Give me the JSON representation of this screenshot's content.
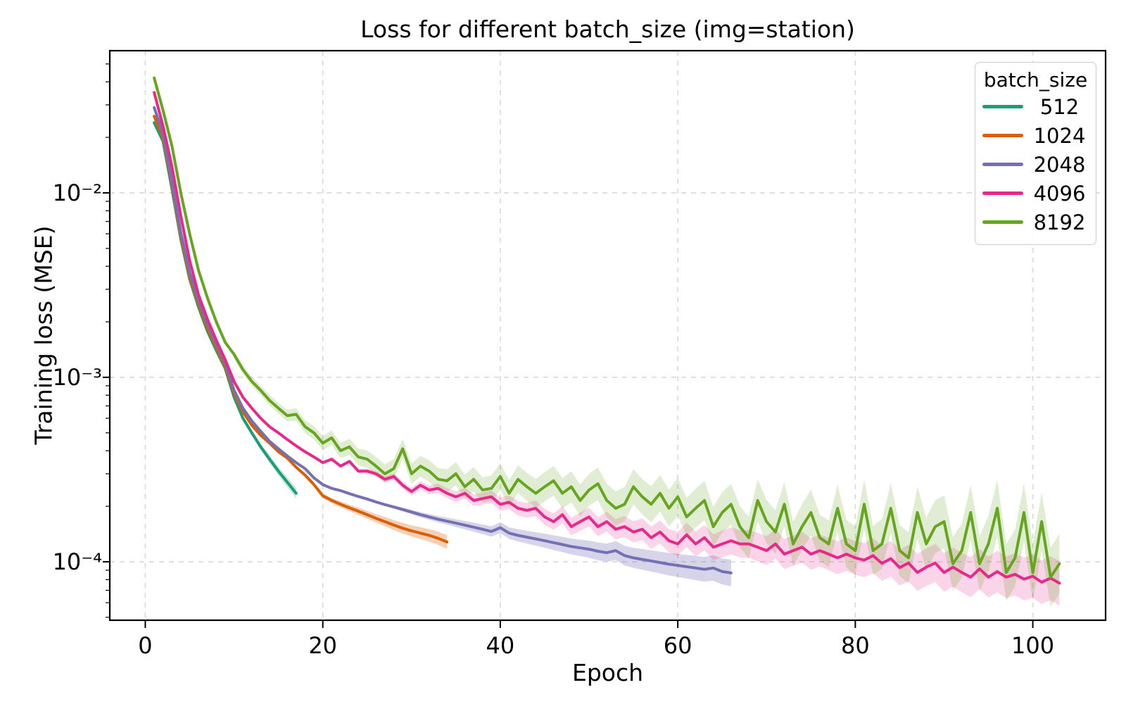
{
  "figure": {
    "title": "Loss for different batch_size (img=station)",
    "xlabel": "Epoch",
    "ylabel": "Training loss (MSE)"
  },
  "legend": {
    "title": "batch_size",
    "entries": [
      {
        "label": "512",
        "color": "#1b9e77"
      },
      {
        "label": "1024",
        "color": "#d95f02"
      },
      {
        "label": "2048",
        "color": "#7570b3"
      },
      {
        "label": "4096",
        "color": "#e7298a"
      },
      {
        "label": "8192",
        "color": "#66a61e"
      }
    ]
  },
  "style": {
    "grid_color": "#d8d8d8",
    "spine_color": "#000000",
    "background": "#ffffff"
  },
  "chart_data": {
    "type": "line",
    "title": "Loss for different batch_size (img=station)",
    "xlabel": "Epoch",
    "ylabel": "Training loss (MSE)",
    "legend_title": "batch_size",
    "legend_position": "upper right",
    "grid": "dashed, major ticks both axes",
    "x_axis": {
      "scale": "linear",
      "lim": [
        -4.0,
        108.2
      ],
      "ticks": [
        {
          "v": 0,
          "label": "0"
        },
        {
          "v": 20,
          "label": "20"
        },
        {
          "v": 40,
          "label": "40"
        },
        {
          "v": 60,
          "label": "60"
        },
        {
          "v": 80,
          "label": "80"
        },
        {
          "v": 100,
          "label": "100"
        }
      ]
    },
    "y_axis": {
      "scale": "log",
      "lim": [
        4.82e-05,
        0.059
      ],
      "ticks": [
        {
          "v": 0.01,
          "label": "10⁻²"
        },
        {
          "v": 0.001,
          "label": "10⁻³"
        },
        {
          "v": 0.0001,
          "label": "10⁻⁴"
        }
      ]
    },
    "series": [
      {
        "name": "512",
        "color": "#1b9e77",
        "x_start": 1,
        "x_step": 1,
        "band": {
          "from": 10,
          "f0": 1.02,
          "f1": 1.07,
          "alpha": 0.25
        },
        "values": [
          0.024,
          0.019,
          0.0105,
          0.0056,
          0.0034,
          0.0024,
          0.00178,
          0.0014,
          0.00112,
          0.00078,
          0.0006,
          0.0005,
          0.00042,
          0.00036,
          0.00031,
          0.00027,
          0.000235
        ]
      },
      {
        "name": "1024",
        "color": "#d95f02",
        "x_start": 1,
        "x_step": 1,
        "band": {
          "from": 18,
          "f0": 1.02,
          "f1": 1.09,
          "alpha": 0.3
        },
        "values": [
          0.026,
          0.02,
          0.011,
          0.0058,
          0.0035,
          0.0025,
          0.00185,
          0.00145,
          0.00115,
          0.00082,
          0.00065,
          0.00055,
          0.000485,
          0.00044,
          0.000395,
          0.000365,
          0.000325,
          0.000295,
          0.000262,
          0.000228,
          0.000215,
          0.000205,
          0.000196,
          0.000188,
          0.00018,
          0.000172,
          0.000165,
          0.000158,
          0.000152,
          0.000147,
          0.000143,
          0.000139,
          0.000134,
          0.000128
        ]
      },
      {
        "name": "2048",
        "color": "#7570b3",
        "x_start": 1,
        "x_step": 1,
        "band": {
          "from": 28,
          "f0": 1.02,
          "f1": 1.18,
          "alpha": 0.3
        },
        "values": [
          0.029,
          0.021,
          0.0115,
          0.0061,
          0.0037,
          0.0026,
          0.00195,
          0.00152,
          0.0012,
          0.00085,
          0.00068,
          0.00058,
          0.00051,
          0.00045,
          0.00041,
          0.000375,
          0.000345,
          0.00032,
          0.000285,
          0.000262,
          0.00025,
          0.000243,
          0.000234,
          0.000226,
          0.000219,
          0.000211,
          0.000204,
          0.000198,
          0.000192,
          0.000186,
          0.00018,
          0.000175,
          0.00017,
          0.000166,
          0.000162,
          0.000158,
          0.000154,
          0.00015,
          0.000146,
          0.000153,
          0.000143,
          0.000139,
          0.000136,
          0.000133,
          0.00013,
          0.000127,
          0.000124,
          0.000121,
          0.000119,
          0.000117,
          0.000114,
          0.000112,
          0.000115,
          0.000108,
          0.000105,
          0.000103,
          0.000101,
          9.9e-05,
          9.7e-05,
          9.55e-05,
          9.4e-05,
          9.25e-05,
          9.1e-05,
          9.25e-05,
          8.85e-05,
          8.7e-05
        ]
      },
      {
        "name": "4096",
        "color": "#e7298a",
        "x_start": 1,
        "x_step": 1,
        "band": {
          "from": 22,
          "f0": 1.02,
          "f1": 1.32,
          "alpha": 0.2
        },
        "values": [
          0.035,
          0.023,
          0.0139,
          0.0075,
          0.0043,
          0.0028,
          0.00207,
          0.00159,
          0.00125,
          0.00095,
          0.00078,
          0.00068,
          0.0006,
          0.00054,
          0.0005,
          0.00046,
          0.000425,
          0.000395,
          0.00037,
          0.000345,
          0.00036,
          0.00033,
          0.00035,
          0.00031,
          0.00031,
          0.0003,
          0.00028,
          0.00029,
          0.00026,
          0.00024,
          0.00026,
          0.000245,
          0.00025,
          0.000235,
          0.000225,
          0.000235,
          0.000215,
          0.00022,
          0.000225,
          0.000205,
          0.00021,
          0.000195,
          0.00019,
          0.000195,
          0.000175,
          0.000165,
          0.00018,
          0.000155,
          0.000165,
          0.000175,
          0.000155,
          0.000165,
          0.00015,
          0.000155,
          0.000145,
          0.00015,
          0.000135,
          0.000145,
          0.00013,
          0.000125,
          0.00014,
          0.000125,
          0.000135,
          0.00012,
          0.000125,
          0.00013,
          0.000125,
          0.000125,
          0.00012,
          0.000115,
          0.000125,
          0.00011,
          0.000115,
          0.00012,
          0.00011,
          0.000115,
          0.00011,
          0.000105,
          0.00011,
          0.000105,
          0.000102,
          0.000108,
          9.8e-05,
          0.000104,
          9.3e-05,
          9.85e-05,
          8.75e-05,
          9.35e-05,
          9.85e-05,
          8.75e-05,
          9.35e-05,
          8.75e-05,
          8.25e-05,
          9.15e-05,
          8.25e-05,
          8.85e-05,
          8.25e-05,
          8.55e-05,
          8.05e-05,
          8.35e-05,
          7.75e-05,
          8.15e-05,
          7.65e-05
        ]
      },
      {
        "name": "8192",
        "color": "#66a61e",
        "x_start": 1,
        "x_step": 1,
        "band": {
          "from": 10,
          "f0": 1.05,
          "f1": 1.45,
          "alpha": 0.2
        },
        "values": [
          0.042,
          0.028,
          0.018,
          0.01,
          0.006,
          0.0038,
          0.0027,
          0.002,
          0.00155,
          0.00133,
          0.0011,
          0.00095,
          0.00085,
          0.00075,
          0.00068,
          0.00062,
          0.00063,
          0.00054,
          0.0005,
          0.00044,
          0.00047,
          0.0004,
          0.00042,
          0.00037,
          0.00036,
          0.00033,
          0.0003,
          0.00032,
          0.00041,
          0.0003,
          0.00033,
          0.00031,
          0.00028,
          0.000275,
          0.0003,
          0.000255,
          0.00028,
          0.000245,
          0.00025,
          0.00029,
          0.000235,
          0.00028,
          0.000255,
          0.000235,
          0.000255,
          0.000275,
          0.000235,
          0.000255,
          0.000215,
          0.000245,
          0.000265,
          0.000215,
          0.000195,
          0.000205,
          0.000255,
          0.000225,
          0.000205,
          0.000235,
          0.000195,
          0.000225,
          0.000175,
          0.000195,
          0.000215,
          0.000155,
          0.000185,
          0.000205,
          0.000155,
          0.000135,
          0.000215,
          0.000165,
          0.000145,
          0.000205,
          0.000125,
          0.000155,
          0.000185,
          0.000135,
          0.000125,
          0.000195,
          0.000125,
          0.000115,
          0.000205,
          0.000115,
          0.000125,
          0.000195,
          0.000115,
          0.000105,
          0.000185,
          0.000125,
          0.000155,
          0.000165,
          9.75e-05,
          0.000115,
          0.000185,
          9.75e-05,
          0.000125,
          0.000195,
          8.75e-05,
          0.000105,
          0.000185,
          8.75e-05,
          0.000165,
          8.25e-05,
          9.75e-05
        ]
      }
    ]
  }
}
